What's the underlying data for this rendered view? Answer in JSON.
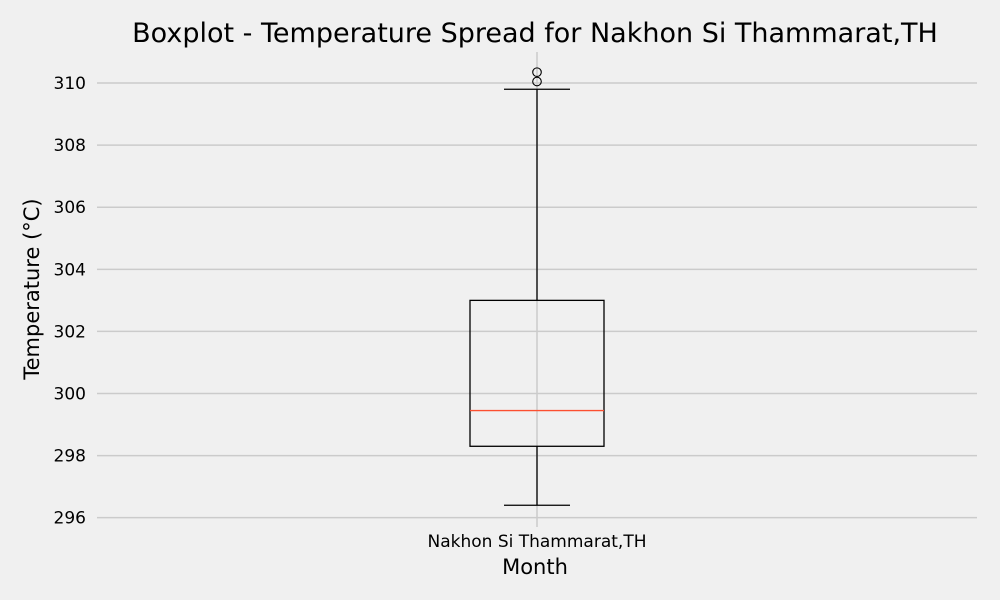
{
  "chart_data": {
    "type": "boxplot",
    "title": "Boxplot - Temperature Spread for Nakhon Si Thammarat,TH",
    "xlabel": "Month",
    "ylabel": "Temperature (°C)",
    "categories": [
      "Nakhon Si Thammarat,TH"
    ],
    "ylim": [
      295.7,
      311.0
    ],
    "yticks": [
      296,
      298,
      300,
      302,
      304,
      306,
      308,
      310
    ],
    "grid": true,
    "boxes": [
      {
        "category": "Nakhon Si Thammarat,TH",
        "whisker_low": 296.4,
        "q1": 298.3,
        "median": 299.45,
        "q3": 303.0,
        "whisker_high": 309.8,
        "outliers": [
          310.05,
          310.35
        ]
      }
    ],
    "colors": {
      "background": "#f0f0f0",
      "grid": "#cbcbcb",
      "box": "#000000",
      "median": "#fc4f30"
    }
  }
}
